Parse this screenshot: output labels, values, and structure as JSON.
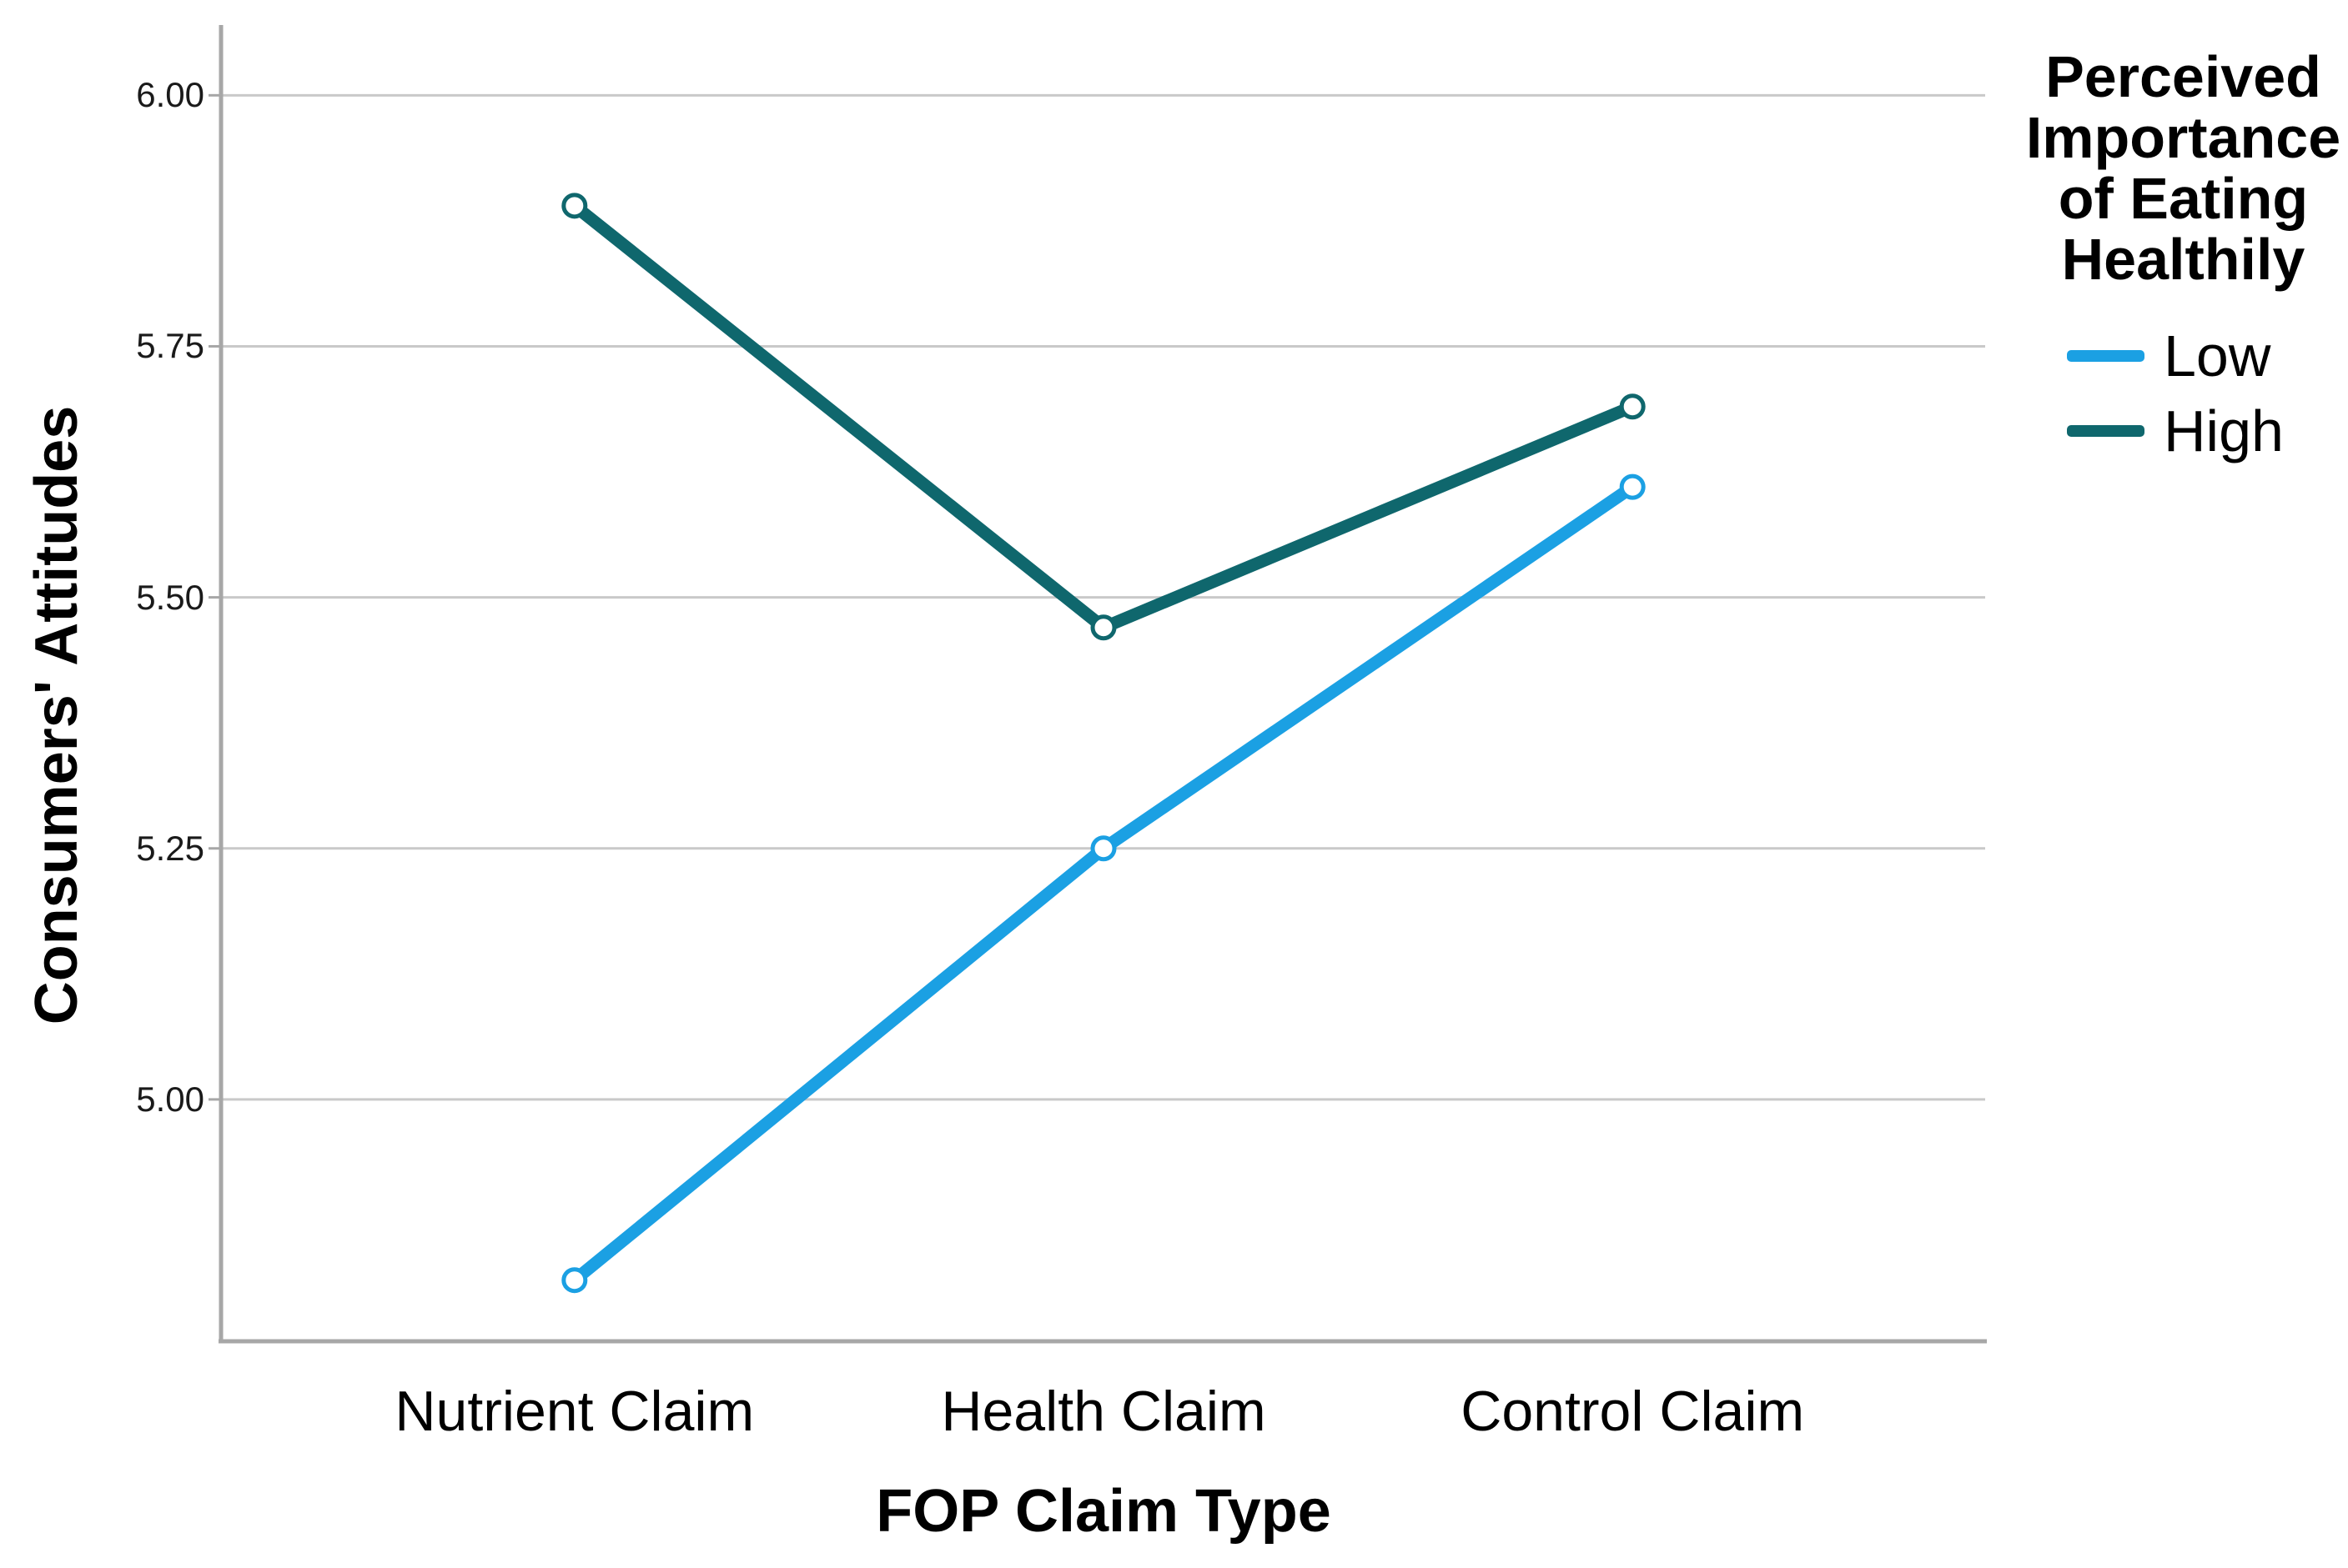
{
  "chart_data": {
    "type": "line",
    "title": "",
    "xlabel": "FOP Claim Type",
    "ylabel": "Consumers' Attitudes",
    "categories": [
      "Nutrient Claim",
      "Health Claim",
      "Control Claim"
    ],
    "series": [
      {
        "name": "Low",
        "color": "#1BA0E3",
        "values": [
          4.82,
          5.25,
          5.61
        ]
      },
      {
        "name": "High",
        "color": "#0F676D",
        "values": [
          5.89,
          5.47,
          5.69
        ]
      }
    ],
    "yticks": [
      6.0,
      5.75,
      5.5,
      5.25,
      5.0
    ],
    "ytick_labels": [
      "6.00",
      "5.75",
      "5.50",
      "5.25",
      "5.00"
    ],
    "ylim": [
      4.76,
      6.07
    ],
    "grid": "horizontal",
    "marker": "open-circle",
    "legend_position": "right"
  },
  "legend": {
    "title_lines": [
      "Perceived",
      "Importance",
      "of Eating",
      "Healthily"
    ],
    "items": [
      {
        "label": "Low",
        "color": "#1BA0E3"
      },
      {
        "label": "High",
        "color": "#0F676D"
      }
    ]
  },
  "colors": {
    "background": "#ffffff",
    "axis": "#a7a7a7",
    "gridline": "#c9c9c9",
    "tick_text": "#1a1a1a",
    "label_text": "#000000"
  }
}
